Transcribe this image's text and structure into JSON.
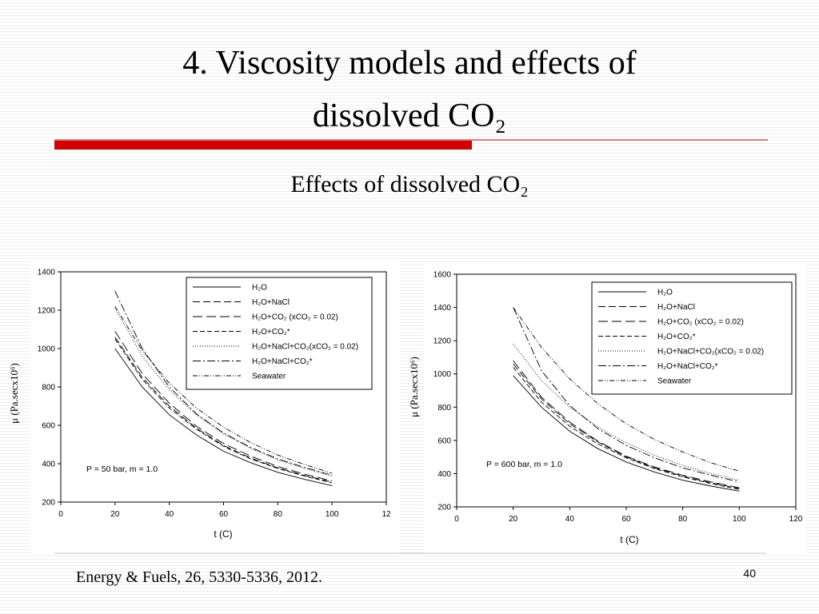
{
  "slide": {
    "title_lines": [
      "4. Viscosity models and effects of",
      "dissolved CO₂"
    ],
    "subtitle": "Effects of dissolved CO₂",
    "citation": "Energy & Fuels, 26, 5330-5336, 2012.",
    "page": "40"
  },
  "chart_data": [
    {
      "type": "line",
      "annotation": "P = 50 bar, m = 1.0",
      "xlabel": "t (C)",
      "ylabel": "μ (Pa.secx10⁶)",
      "x": [
        20,
        30,
        40,
        50,
        60,
        70,
        80,
        90,
        100
      ],
      "xlim": [
        0,
        120
      ],
      "xticks": [
        0,
        20,
        40,
        60,
        80,
        100,
        {
          "value": 120,
          "label": "12"
        }
      ],
      "ylim": [
        200,
        1400
      ],
      "yticks": [
        200,
        400,
        600,
        800,
        1000,
        1200,
        1400
      ],
      "series": [
        {
          "name": "H₂O",
          "color": "#000000",
          "dash": "none",
          "values": [
            1000,
            800,
            655,
            550,
            465,
            405,
            355,
            318,
            285
          ]
        },
        {
          "name": "H₂O+NaCl",
          "color": "#000000",
          "dash": "9 4",
          "values": [
            1060,
            850,
            700,
            585,
            495,
            430,
            378,
            338,
            305
          ]
        },
        {
          "name": "H₂O+CO₂ (xCO₂ = 0.02)",
          "color": "#000000",
          "dash": "12 5",
          "values": [
            1090,
            870,
            715,
            595,
            505,
            440,
            385,
            345,
            310
          ]
        },
        {
          "name": "H₂O+CO₂*",
          "color": "#000000",
          "dash": "6 3",
          "values": [
            1050,
            840,
            690,
            580,
            490,
            425,
            375,
            335,
            300
          ]
        },
        {
          "name": "H₂O+NaCl+CO₂(xCO₂ = 0.02)",
          "color": "#000000",
          "dash": "1 2",
          "values": [
            1210,
            960,
            785,
            655,
            555,
            480,
            420,
            375,
            335
          ]
        },
        {
          "name": "H₂O+NaCl+CO₂*",
          "color": "#000000",
          "dash": "10 3 2 3",
          "values": [
            1300,
            1000,
            800,
            660,
            560,
            485,
            425,
            380,
            340
          ]
        },
        {
          "name": "Seawater",
          "color": "#000000",
          "dash": "6 2 1 2 1 2",
          "values": [
            1220,
            990,
            820,
            690,
            590,
            510,
            445,
            395,
            350
          ]
        }
      ]
    },
    {
      "type": "line",
      "annotation": "P = 600 bar, m = 1.0",
      "xlabel": "t (C)",
      "ylabel": "μ (Pa.secx10⁶)",
      "x": [
        20,
        30,
        40,
        50,
        60,
        70,
        80,
        90,
        100
      ],
      "xlim": [
        0,
        120
      ],
      "xticks": [
        0,
        20,
        40,
        60,
        80,
        100,
        120
      ],
      "ylim": [
        200,
        1600
      ],
      "yticks": [
        200,
        400,
        600,
        800,
        1000,
        1200,
        1400,
        1600
      ],
      "series": [
        {
          "name": "H₂O",
          "color": "#000000",
          "dash": "none",
          "values": [
            990,
            800,
            655,
            550,
            470,
            410,
            360,
            325,
            295
          ]
        },
        {
          "name": "H₂O+NaCl",
          "color": "#000000",
          "dash": "9 4",
          "values": [
            1060,
            850,
            700,
            590,
            500,
            435,
            385,
            345,
            310
          ]
        },
        {
          "name": "H₂O+CO₂ (xCO₂ = 0.02)",
          "color": "#000000",
          "dash": "12 5",
          "values": [
            1080,
            860,
            710,
            595,
            505,
            440,
            390,
            350,
            315
          ]
        },
        {
          "name": "H₂O+CO₂*",
          "color": "#000000",
          "dash": "6 3",
          "values": [
            1040,
            830,
            685,
            578,
            495,
            430,
            380,
            340,
            305
          ]
        },
        {
          "name": "H₂O+NaCl+CO₂(xCO₂ = 0.02)",
          "color": "#000000",
          "dash": "1 2",
          "values": [
            1180,
            960,
            800,
            680,
            585,
            510,
            450,
            400,
            360
          ]
        },
        {
          "name": "H₂O+NaCl+CO₂*",
          "color": "#000000",
          "dash": "10 3 2 3",
          "values": [
            1400,
            1020,
            810,
            670,
            570,
            495,
            435,
            390,
            350
          ]
        },
        {
          "name": "Seawater",
          "color": "#000000",
          "dash": "6 2 1 2 1 2",
          "values": [
            1400,
            1160,
            970,
            820,
            700,
            605,
            530,
            465,
            415
          ]
        }
      ]
    }
  ]
}
